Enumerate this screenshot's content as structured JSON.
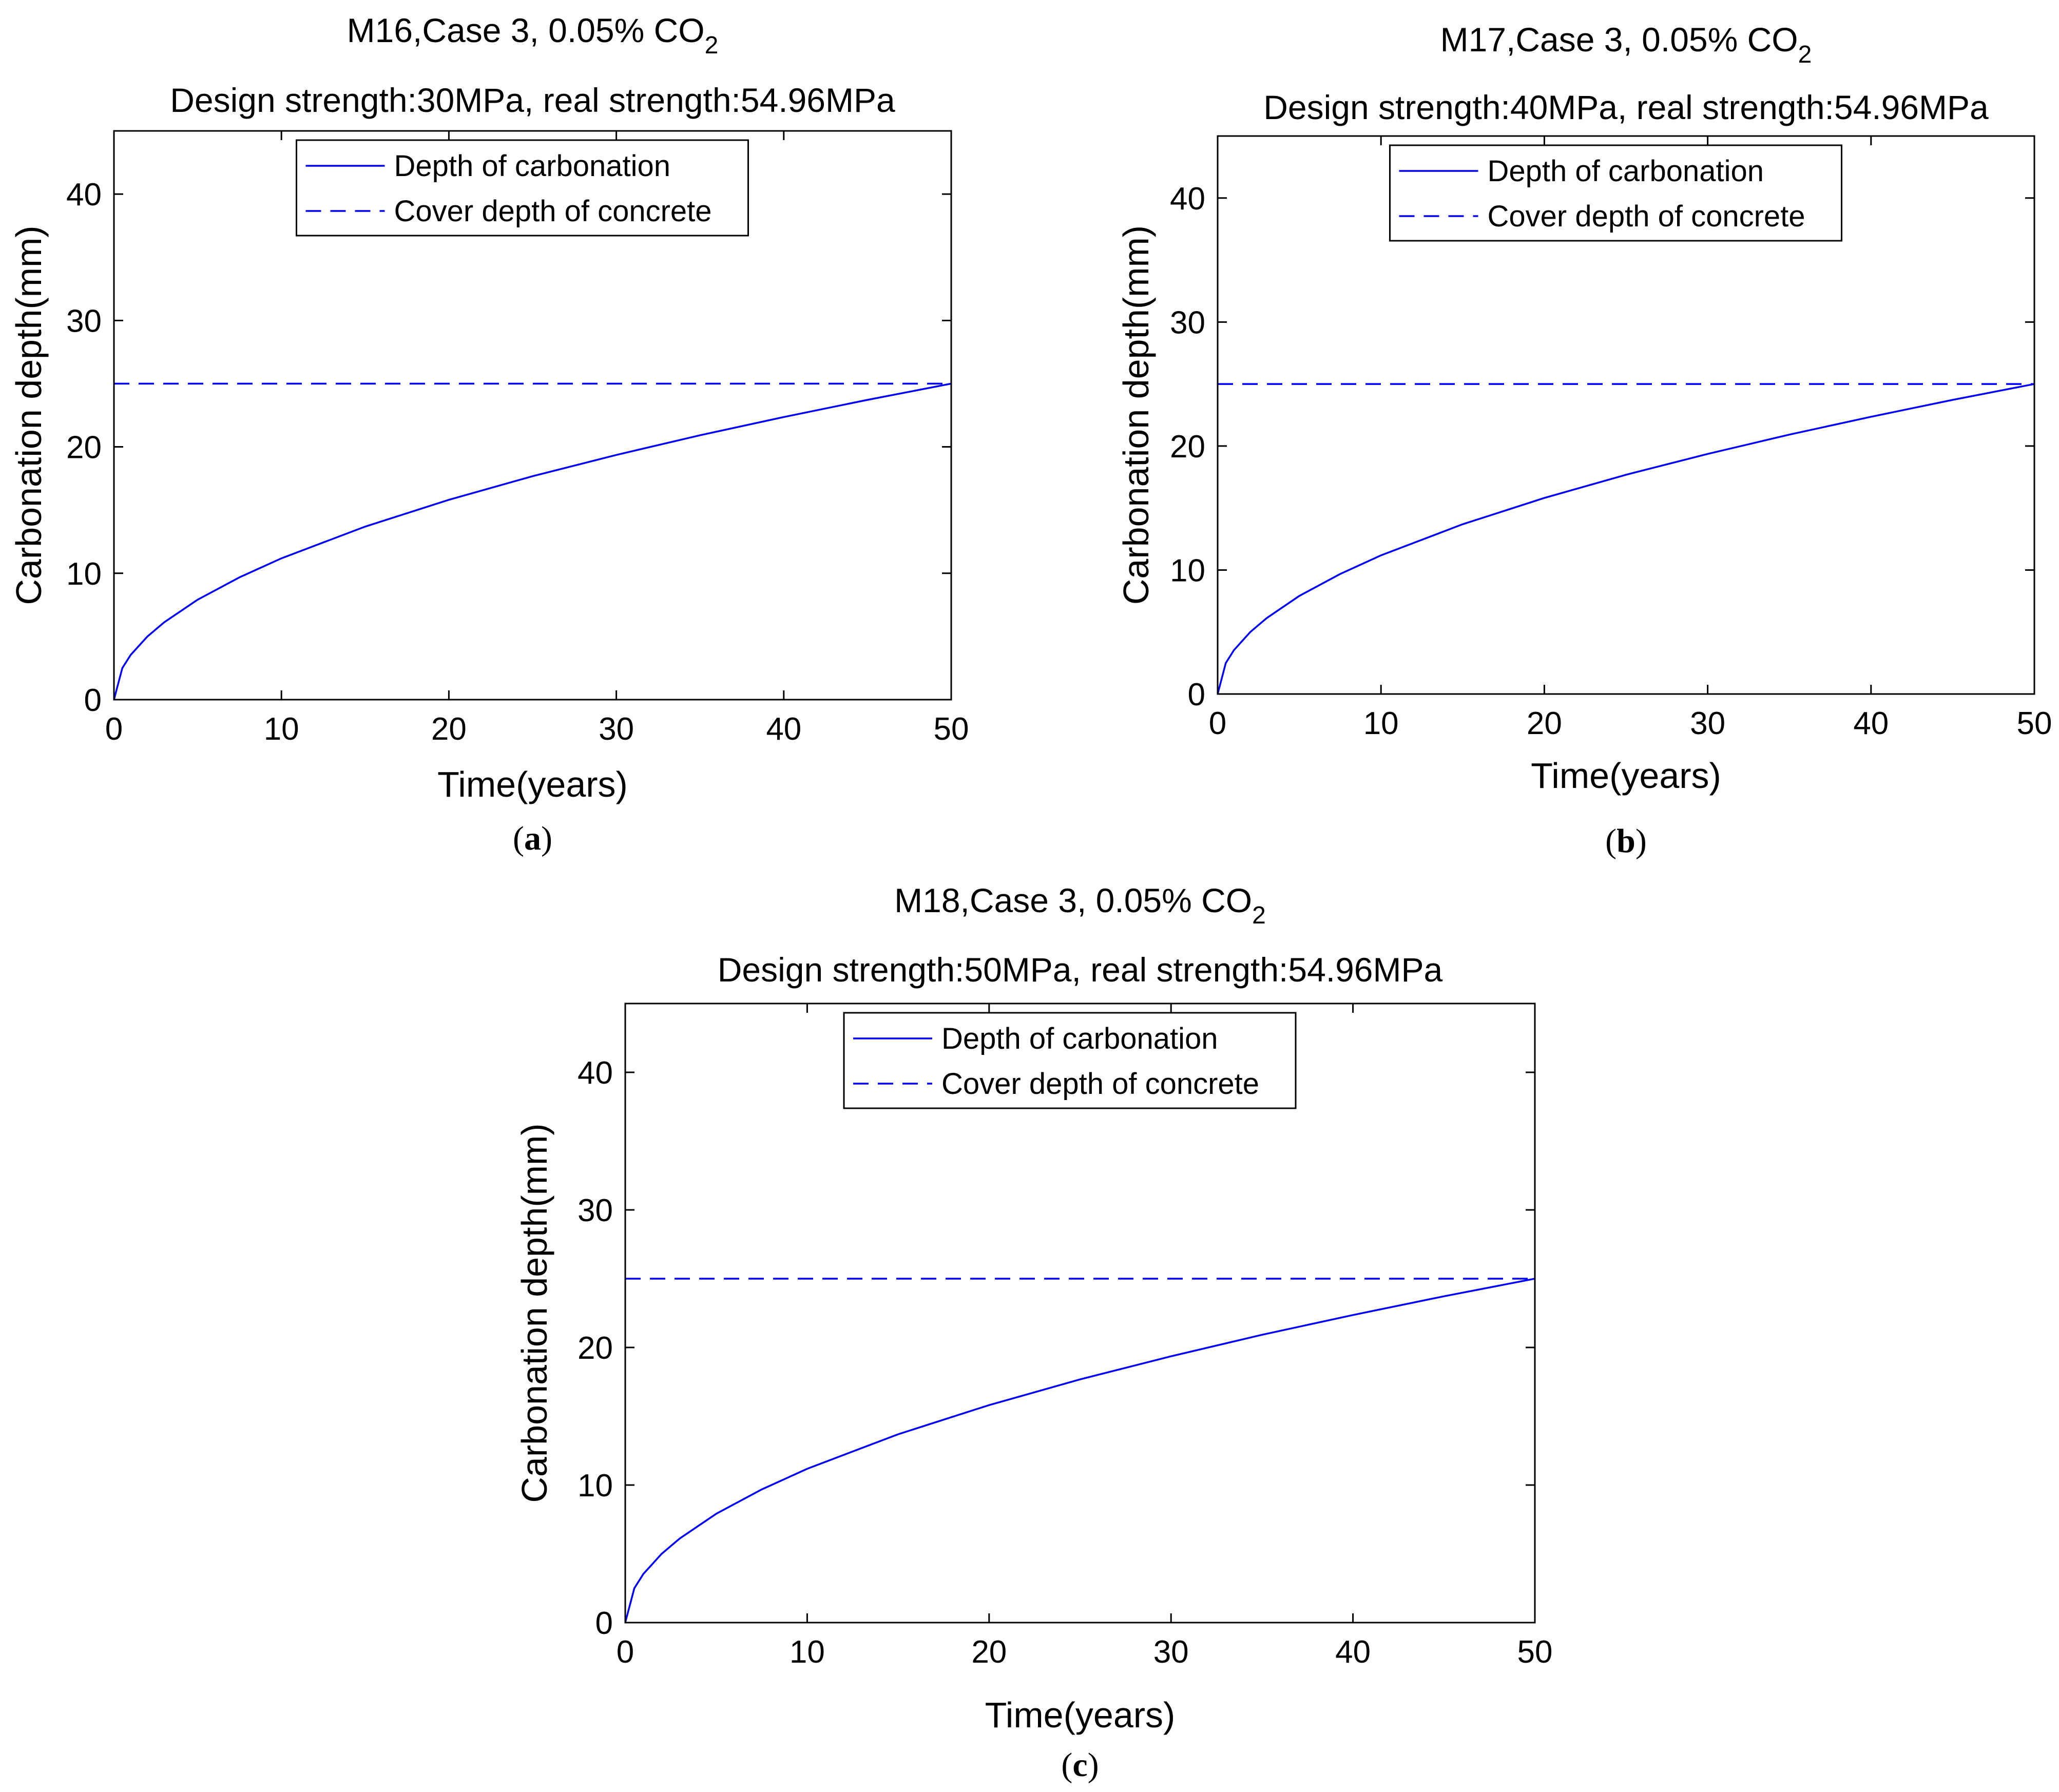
{
  "chart_data": [
    {
      "type": "line",
      "panel": "a",
      "caption": "(a)",
      "title_line1": "M16,Case 3, 0.05% CO",
      "title_sub": "2",
      "title_line2": "Design strength:30MPa, real strength:54.96MPa",
      "xlabel": "Time(years)",
      "ylabel": "Carbonation depth(mm)",
      "xlim": [
        0,
        50
      ],
      "ylim": [
        0,
        45
      ],
      "xticks": [
        0,
        10,
        20,
        30,
        40,
        50
      ],
      "yticks": [
        0,
        10,
        20,
        30,
        40
      ],
      "legend_position": "top-center",
      "series": [
        {
          "name": "Depth of carbonation",
          "style": "solid",
          "color": "#0000ff",
          "x": [
            0,
            0.5,
            1,
            2,
            3,
            5,
            7.5,
            10,
            15,
            20,
            25,
            30,
            35,
            40,
            45,
            50
          ],
          "y": [
            0,
            2.5,
            3.54,
            5.0,
            6.12,
            7.91,
            9.68,
            11.18,
            13.69,
            15.81,
            17.68,
            19.36,
            20.92,
            22.36,
            23.72,
            25.0
          ]
        },
        {
          "name": "Cover depth of concrete",
          "style": "dashed",
          "color": "#0000ff",
          "x": [
            0,
            50
          ],
          "y": [
            25,
            25
          ]
        }
      ]
    },
    {
      "type": "line",
      "panel": "b",
      "caption": "(b)",
      "title_line1": "M17,Case 3, 0.05% CO",
      "title_sub": "2",
      "title_line2": "Design strength:40MPa, real strength:54.96MPa",
      "xlabel": "Time(years)",
      "ylabel": "Carbonation depth(mm)",
      "xlim": [
        0,
        50
      ],
      "ylim": [
        0,
        45
      ],
      "xticks": [
        0,
        10,
        20,
        30,
        40,
        50
      ],
      "yticks": [
        0,
        10,
        20,
        30,
        40
      ],
      "legend_position": "top-center",
      "series": [
        {
          "name": "Depth of carbonation",
          "style": "solid",
          "color": "#0000ff",
          "x": [
            0,
            0.5,
            1,
            2,
            3,
            5,
            7.5,
            10,
            15,
            20,
            25,
            30,
            35,
            40,
            45,
            50
          ],
          "y": [
            0,
            2.5,
            3.54,
            5.0,
            6.12,
            7.91,
            9.68,
            11.18,
            13.69,
            15.81,
            17.68,
            19.36,
            20.92,
            22.36,
            23.72,
            25.0
          ]
        },
        {
          "name": "Cover depth of concrete",
          "style": "dashed",
          "color": "#0000ff",
          "x": [
            0,
            50
          ],
          "y": [
            25,
            25
          ]
        }
      ]
    },
    {
      "type": "line",
      "panel": "c",
      "caption": "(c)",
      "title_line1": "M18,Case 3, 0.05% CO",
      "title_sub": "2",
      "title_line2": "Design strength:50MPa, real strength:54.96MPa",
      "xlabel": "Time(years)",
      "ylabel": "Carbonation depth(mm)",
      "xlim": [
        0,
        50
      ],
      "ylim": [
        0,
        45
      ],
      "xticks": [
        0,
        10,
        20,
        30,
        40,
        50
      ],
      "yticks": [
        0,
        10,
        20,
        30,
        40
      ],
      "legend_position": "top-center",
      "series": [
        {
          "name": "Depth of carbonation",
          "style": "solid",
          "color": "#0000ff",
          "x": [
            0,
            0.5,
            1,
            2,
            3,
            5,
            7.5,
            10,
            15,
            20,
            25,
            30,
            35,
            40,
            45,
            50
          ],
          "y": [
            0,
            2.5,
            3.54,
            5.0,
            6.12,
            7.91,
            9.68,
            11.18,
            13.69,
            15.81,
            17.68,
            19.36,
            20.92,
            22.36,
            23.72,
            25.0
          ]
        },
        {
          "name": "Cover depth of concrete",
          "style": "dashed",
          "color": "#0000ff",
          "x": [
            0,
            50
          ],
          "y": [
            25,
            25
          ]
        }
      ]
    }
  ]
}
